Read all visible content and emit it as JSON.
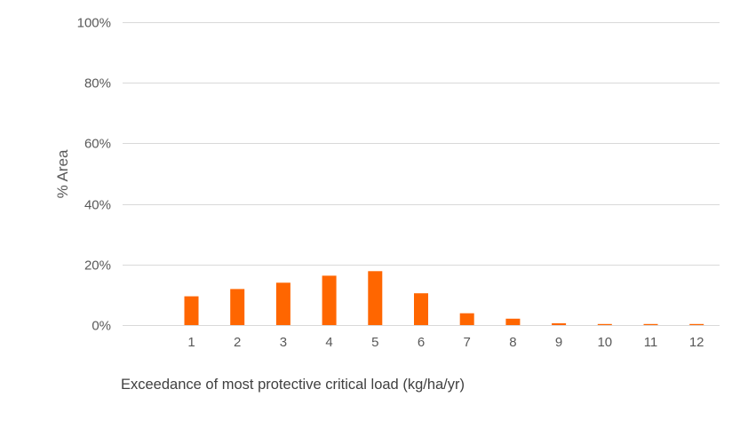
{
  "chart_data": {
    "type": "bar",
    "categories": [
      "",
      "1",
      "2",
      "3",
      "4",
      "5",
      "6",
      "7",
      "8",
      "9",
      "10",
      "11",
      "12"
    ],
    "values": [
      null,
      9.5,
      11.9,
      14.0,
      16.3,
      17.8,
      10.5,
      3.9,
      2.1,
      0.6,
      0.3,
      0.3,
      0.3
    ],
    "title": "",
    "xlabel": "Exceedance of most protective critical load (kg/ha/yr)",
    "ylabel": "% Area",
    "ylim": [
      0,
      100
    ],
    "yticks": [
      "0%",
      "20%",
      "40%",
      "60%",
      "80%",
      "100%"
    ],
    "ytick_values": [
      0,
      20,
      40,
      60,
      80,
      100
    ],
    "grid": true,
    "legend": "none",
    "colors": {
      "bar": "#ff6600",
      "grid": "#d9d9d9",
      "text": "#595959"
    }
  }
}
